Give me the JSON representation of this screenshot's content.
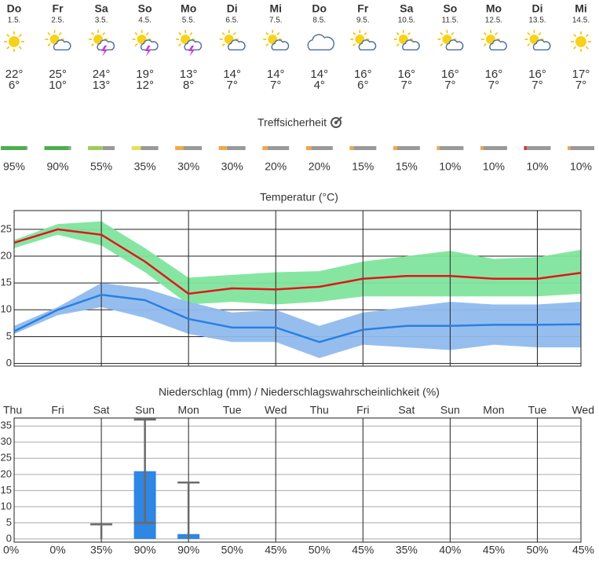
{
  "forecast": {
    "days": [
      "Do",
      "Fr",
      "Sa",
      "So",
      "Mo",
      "Di",
      "Mi",
      "Do",
      "Fr",
      "Sa",
      "So",
      "Mo",
      "Di",
      "Mi"
    ],
    "day_colors": [
      "#222",
      "#222",
      "#d0303a",
      "#d0303a",
      "#222",
      "#222",
      "#222",
      "#222",
      "#222",
      "#d0303a",
      "#d0303a",
      "#222",
      "#222",
      "#222"
    ],
    "dates": [
      "1.5.",
      "2.5.",
      "3.5.",
      "4.5.",
      "5.5.",
      "6.5.",
      "7.5.",
      "8.5.",
      "9.5.",
      "10.5.",
      "11.5.",
      "12.5.",
      "13.5.",
      "14.5."
    ],
    "highs": [
      "22°",
      "25°",
      "24°",
      "19°",
      "13°",
      "14°",
      "14°",
      "14°",
      "16°",
      "16°",
      "16°",
      "16°",
      "16°",
      "17°"
    ],
    "lows": [
      "6°",
      "10°",
      "13°",
      "12°",
      "8°",
      "7°",
      "7°",
      "4°",
      "6°",
      "7°",
      "7°",
      "7°",
      "7°",
      "7°"
    ],
    "high_color": "#d9333a",
    "low_color": "#1f8fb0"
  },
  "accuracy": {
    "title": "Treffsicherheit",
    "values": [
      95,
      90,
      55,
      35,
      30,
      30,
      20,
      20,
      15,
      15,
      10,
      10,
      10,
      10
    ],
    "value_labels": [
      "95%",
      "90%",
      "55%",
      "35%",
      "30%",
      "30%",
      "20%",
      "20%",
      "15%",
      "15%",
      "10%",
      "10%",
      "10%",
      "10%"
    ],
    "colors": [
      "#4caf4c",
      "#4caf4c",
      "#9ccc5a",
      "#e6e05a",
      "#f0a848",
      "#f0a848",
      "#f0a848",
      "#f0a848",
      "#f0a848",
      "#f0a848",
      "#f0a848",
      "#f0a848",
      "#d9302c",
      "#f0a848"
    ],
    "rest_color": "#999"
  },
  "chart_data": [
    {
      "type": "line",
      "title": "Temperatur (°C)",
      "categories": [
        null,
        null,
        null,
        null,
        null,
        null,
        null,
        null,
        null,
        null,
        null,
        null,
        null,
        null
      ],
      "ylim": [
        -0.5,
        28.5
      ],
      "yticks": [
        0,
        5,
        10,
        15,
        20,
        25
      ],
      "grid": true,
      "bands": [
        {
          "color": "#80e59c",
          "high": [
            23,
            26,
            26.5,
            21.5,
            16,
            16.5,
            17,
            17.2,
            19,
            20,
            21,
            19.5,
            19.8,
            21.2
          ],
          "low": [
            21.5,
            24,
            22,
            17,
            11,
            11.5,
            11,
            11.5,
            12.5,
            12.5,
            12.5,
            12.5,
            12.5,
            13
          ]
        },
        {
          "color": "#8fbbee",
          "high": [
            7,
            10.5,
            15,
            14,
            11.5,
            9.5,
            10,
            7,
            9.5,
            10.5,
            11.5,
            11,
            11,
            11.5
          ],
          "low": [
            5.5,
            9,
            10.5,
            8.5,
            5.5,
            4,
            4,
            1,
            3.5,
            3,
            2.5,
            3.5,
            3,
            3
          ]
        }
      ],
      "series": [
        {
          "color": "#e3141c",
          "values": [
            22.5,
            25,
            24,
            19,
            13,
            14,
            13.8,
            14.3,
            15.8,
            16.3,
            16.3,
            15.8,
            15.8,
            16.9
          ]
        },
        {
          "color": "#2b7fe0",
          "values": [
            6,
            10,
            12.8,
            11.8,
            8.3,
            6.7,
            6.7,
            4,
            6.3,
            7,
            7,
            7.2,
            7.2,
            7.3
          ]
        }
      ]
    },
    {
      "type": "bar",
      "title": "Niederschlag (mm) / Niederschlagswahrscheinlichkeit (%)",
      "categories": [
        "Thu",
        "Fri",
        "Sat",
        "Sun",
        "Mon",
        "Tue",
        "Wed",
        "Thu",
        "Fri",
        "Sat",
        "Sun",
        "Mon",
        "Tue",
        "Wed"
      ],
      "category_colors": [
        "#333",
        "#333",
        "#d0303a",
        "#d0303a",
        "#333",
        "#333",
        "#333",
        "#333",
        "#333",
        "#d0303a",
        "#d0303a",
        "#333",
        "#333",
        "#333"
      ],
      "values": [
        0,
        0,
        0,
        21,
        1.5,
        0,
        0,
        0,
        0,
        0,
        0,
        0,
        0,
        0
      ],
      "color": "#2f86e3",
      "error_low": [
        null,
        null,
        0,
        5,
        0,
        null,
        null,
        null,
        null,
        null,
        null,
        null,
        null,
        null
      ],
      "error_high": [
        null,
        null,
        4.5,
        37,
        17.5,
        null,
        null,
        null,
        null,
        null,
        null,
        null,
        null,
        null
      ],
      "error_color": "#6a6a6a",
      "ylim": [
        -1,
        37.5
      ],
      "yticks": [
        0,
        5,
        10,
        15,
        20,
        25,
        30,
        35
      ],
      "grid": true,
      "probability_labels": [
        "0%",
        "0%",
        "35%",
        "90%",
        "90%",
        "50%",
        "45%",
        "50%",
        "45%",
        "35%",
        "40%",
        "45%",
        "50%",
        "45%"
      ],
      "probability_colors": [
        "#a6e8f0",
        "#a6e8f0",
        "#4fb0d8",
        "#2a86c8",
        "#2a86c8",
        "#72c6e6",
        "#72c6e6",
        "#72c6e6",
        "#72c6e6",
        "#4fb0d8",
        "#72c6e6",
        "#72c6e6",
        "#72c6e6",
        "#72c6e6"
      ]
    }
  ]
}
